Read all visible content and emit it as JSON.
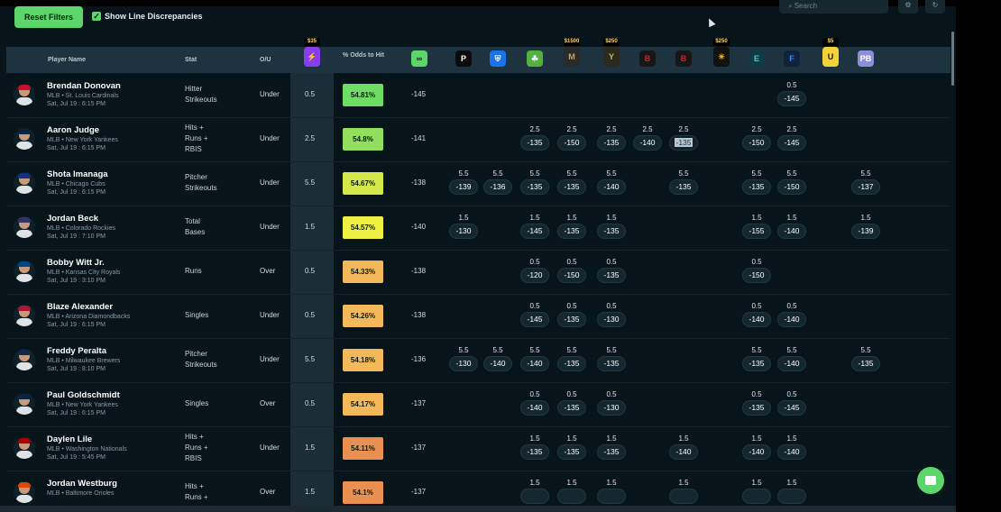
{
  "toolbar": {
    "reset_label": "Reset Filters",
    "line_discrepancies_label": "Show Line Discrepancies",
    "line_discrepancies_checked": true,
    "check_glyph": "✓",
    "search_placeholder": "Search"
  },
  "columns": {
    "player": "Player Name",
    "stat": "Stat",
    "ou": "O/U",
    "odds": "% Odds to Hit"
  },
  "books": [
    {
      "icon": "prizepicks-icon",
      "glyph": "⚡",
      "bg": "#8a3cf0",
      "fg": "#ffffff",
      "promo": "$35"
    },
    {
      "icon": "consensus-link-icon",
      "glyph": "∞",
      "bg": "#5cd66a",
      "fg": "#0a2010",
      "promo": ""
    },
    {
      "icon": "pinnacle-icon",
      "glyph": "P",
      "bg": "#0b0b0b",
      "fg": "#ffffff",
      "promo": ""
    },
    {
      "icon": "fanduel-icon",
      "glyph": "⛨",
      "bg": "#1a73e8",
      "fg": "#ffffff",
      "promo": ""
    },
    {
      "icon": "draftkings-icon",
      "glyph": "☘",
      "bg": "#53b13f",
      "fg": "#ffffff",
      "promo": ""
    },
    {
      "icon": "betmgm-icon",
      "glyph": "M",
      "bg": "#2a2a2a",
      "fg": "#c6a25a",
      "promo": "$1500"
    },
    {
      "icon": "caesars-icon",
      "glyph": "Y",
      "bg": "#2c2a1e",
      "fg": "#c7b26a",
      "promo": "$250"
    },
    {
      "icon": "betrivers-icon",
      "glyph": "B",
      "bg": "#171717",
      "fg": "#d21f2f",
      "promo": ""
    },
    {
      "icon": "barstool-icon",
      "glyph": "B",
      "bg": "#171717",
      "fg": "#d21f2f",
      "promo": ""
    },
    {
      "icon": "fanatics-icon",
      "glyph": "☀",
      "bg": "#111111",
      "fg": "#f2b61e",
      "promo": "$250"
    },
    {
      "icon": "espnbet-icon",
      "glyph": "E",
      "bg": "#0f3b47",
      "fg": "#39d3cc",
      "promo": ""
    },
    {
      "icon": "fliff-icon",
      "glyph": "F",
      "bg": "#102338",
      "fg": "#3b86ff",
      "promo": ""
    },
    {
      "icon": "underdog-icon",
      "glyph": "U",
      "bg": "#f3d23c",
      "fg": "#1a1a1a",
      "promo": "$5"
    },
    {
      "icon": "pb-icon",
      "glyph": "PB",
      "bg": "#8a8fd9",
      "fg": "#ffffff",
      "promo": ""
    }
  ],
  "rows": [
    {
      "name": "Brendan Donovan",
      "team": "MLB • St. Louis Cardinals",
      "time": "Sat, Jul 19 : 6:15 PM",
      "stat": [
        "Hitter",
        "Strikeouts"
      ],
      "ou": "Under",
      "line": "0.5",
      "odds": "54.81%",
      "odds_color": "#6fdc64",
      "base": "-145",
      "cap": "#c8102e",
      "cells": [
        {
          "book": 11,
          "line": "0.5",
          "price": "-145"
        }
      ]
    },
    {
      "name": "Aaron Judge",
      "team": "MLB • New York Yankees",
      "time": "Sat, Jul 19 : 6:15 PM",
      "stat": [
        "Hits +",
        "Runs +",
        "RBIS"
      ],
      "ou": "Under",
      "line": "2.5",
      "odds": "54.8%",
      "odds_color": "#92de5e",
      "base": "-141",
      "cap": "#0c2340",
      "cells": [
        {
          "book": 4,
          "line": "2.5",
          "price": "-135"
        },
        {
          "book": 5,
          "line": "2.5",
          "price": "-150"
        },
        {
          "book": 6,
          "line": "2.5",
          "price": "-135"
        },
        {
          "book": 7,
          "line": "2.5",
          "price": "-140"
        },
        {
          "book": 8,
          "line": "2.5",
          "price": "-135",
          "hl": true
        },
        {
          "book": 10,
          "line": "2.5",
          "price": "-150"
        },
        {
          "book": 11,
          "line": "2.5",
          "price": "-145"
        }
      ]
    },
    {
      "name": "Shota Imanaga",
      "team": "MLB • Chicago Cubs",
      "time": "Sat, Jul 19 : 6:15 PM",
      "stat": [
        "Pitcher",
        "Strikeouts"
      ],
      "ou": "Under",
      "line": "5.5",
      "odds": "54.67%",
      "odds_color": "#d5e84a",
      "base": "-138",
      "cap": "#0e3386",
      "cells": [
        {
          "book": 2,
          "line": "5.5",
          "price": "-139"
        },
        {
          "book": 3,
          "line": "5.5",
          "price": "-136"
        },
        {
          "book": 4,
          "line": "5.5",
          "price": "-135"
        },
        {
          "book": 5,
          "line": "5.5",
          "price": "-135"
        },
        {
          "book": 6,
          "line": "5.5",
          "price": "-140"
        },
        {
          "book": 8,
          "line": "5.5",
          "price": "-135"
        },
        {
          "book": 10,
          "line": "5.5",
          "price": "-135"
        },
        {
          "book": 11,
          "line": "5.5",
          "price": "-150"
        },
        {
          "book": 13,
          "line": "5.5",
          "price": "-137"
        }
      ]
    },
    {
      "name": "Jordan Beck",
      "team": "MLB • Colorado Rockies",
      "time": "Sat, Jul 19 : 7:10 PM",
      "stat": [
        "Total",
        "Bases"
      ],
      "ou": "Under",
      "line": "1.5",
      "odds": "54.57%",
      "odds_color": "#eef043",
      "base": "-140",
      "cap": "#333366",
      "cells": [
        {
          "book": 2,
          "line": "1.5",
          "price": "-130"
        },
        {
          "book": 4,
          "line": "1.5",
          "price": "-145"
        },
        {
          "book": 5,
          "line": "1.5",
          "price": "-135"
        },
        {
          "book": 6,
          "line": "1.5",
          "price": "-135"
        },
        {
          "book": 10,
          "line": "1.5",
          "price": "-155"
        },
        {
          "book": 11,
          "line": "1.5",
          "price": "-140"
        },
        {
          "book": 13,
          "line": "1.5",
          "price": "-139"
        }
      ]
    },
    {
      "name": "Bobby Witt Jr.",
      "team": "MLB • Kansas City Royals",
      "time": "Sat, Jul 19 : 3:10 PM",
      "stat": [
        "Runs"
      ],
      "ou": "Over",
      "line": "0.5",
      "odds": "54.33%",
      "odds_color": "#f2b85a",
      "base": "-138",
      "cap": "#004687",
      "cells": [
        {
          "book": 4,
          "line": "0.5",
          "price": "-120"
        },
        {
          "book": 5,
          "line": "0.5",
          "price": "-150"
        },
        {
          "book": 6,
          "line": "0.5",
          "price": "-135"
        },
        {
          "book": 10,
          "line": "0.5",
          "price": "-150"
        }
      ]
    },
    {
      "name": "Blaze Alexander",
      "team": "MLB • Arizona Diamondbacks",
      "time": "Sat, Jul 19 : 6:15 PM",
      "stat": [
        "Singles"
      ],
      "ou": "Under",
      "line": "0.5",
      "odds": "54.26%",
      "odds_color": "#f2b85a",
      "base": "-138",
      "cap": "#a71930",
      "cells": [
        {
          "book": 4,
          "line": "0.5",
          "price": "-145"
        },
        {
          "book": 5,
          "line": "0.5",
          "price": "-135"
        },
        {
          "book": 6,
          "line": "0.5",
          "price": "-130"
        },
        {
          "book": 10,
          "line": "0.5",
          "price": "-140"
        },
        {
          "book": 11,
          "line": "0.5",
          "price": "-140"
        }
      ]
    },
    {
      "name": "Freddy Peralta",
      "team": "MLB • Milwaukee Brewers",
      "time": "Sat, Jul 19 : 8:10 PM",
      "stat": [
        "Pitcher",
        "Strikeouts"
      ],
      "ou": "Under",
      "line": "5.5",
      "odds": "54.18%",
      "odds_color": "#f2b85a",
      "base": "-136",
      "cap": "#12284b",
      "cells": [
        {
          "book": 2,
          "line": "5.5",
          "price": "-130"
        },
        {
          "book": 3,
          "line": "5.5",
          "price": "-140"
        },
        {
          "book": 4,
          "line": "5.5",
          "price": "-140"
        },
        {
          "book": 5,
          "line": "5.5",
          "price": "-135"
        },
        {
          "book": 6,
          "line": "5.5",
          "price": "-135"
        },
        {
          "book": 10,
          "line": "5.5",
          "price": "-135"
        },
        {
          "book": 11,
          "line": "5.5",
          "price": "-140"
        },
        {
          "book": 13,
          "line": "5.5",
          "price": "-135"
        }
      ]
    },
    {
      "name": "Paul Goldschmidt",
      "team": "MLB • New York Yankees",
      "time": "Sat, Jul 19 : 6:15 PM",
      "stat": [
        "Singles"
      ],
      "ou": "Over",
      "line": "0.5",
      "odds": "54.17%",
      "odds_color": "#f2b85a",
      "base": "-137",
      "cap": "#0c2340",
      "cells": [
        {
          "book": 4,
          "line": "0.5",
          "price": "-140"
        },
        {
          "book": 5,
          "line": "0.5",
          "price": "-135"
        },
        {
          "book": 6,
          "line": "0.5",
          "price": "-130"
        },
        {
          "book": 10,
          "line": "0.5",
          "price": "-135"
        },
        {
          "book": 11,
          "line": "0.5",
          "price": "-145"
        }
      ]
    },
    {
      "name": "Daylen Lile",
      "team": "MLB • Washington Nationals",
      "time": "Sat, Jul 19 : 5:45 PM",
      "stat": [
        "Hits +",
        "Runs +",
        "RBIS"
      ],
      "ou": "Under",
      "line": "1.5",
      "odds": "54.11%",
      "odds_color": "#ea8f52",
      "base": "-137",
      "cap": "#ab0003",
      "cells": [
        {
          "book": 4,
          "line": "1.5",
          "price": "-135"
        },
        {
          "book": 5,
          "line": "1.5",
          "price": "-135"
        },
        {
          "book": 6,
          "line": "1.5",
          "price": "-135"
        },
        {
          "book": 8,
          "line": "1.5",
          "price": "-140"
        },
        {
          "book": 10,
          "line": "1.5",
          "price": "-140"
        },
        {
          "book": 11,
          "line": "1.5",
          "price": "-140"
        }
      ]
    },
    {
      "name": "Jordan Westburg",
      "team": "MLB • Baltimore Orioles",
      "time": "",
      "stat": [
        "Hits +",
        "Runs +"
      ],
      "ou": "Over",
      "line": "1.5",
      "odds": "54.1%",
      "odds_color": "#ea8f52",
      "base": "-137",
      "cap": "#df4601",
      "cells": [
        {
          "book": 4,
          "line": "1.5",
          "price": ""
        },
        {
          "book": 5,
          "line": "1.5",
          "price": ""
        },
        {
          "book": 6,
          "line": "1.5",
          "price": ""
        },
        {
          "book": 8,
          "line": "1.5",
          "price": ""
        },
        {
          "book": 10,
          "line": "1.5",
          "price": ""
        },
        {
          "book": 11,
          "line": "1.5",
          "price": ""
        }
      ]
    }
  ]
}
